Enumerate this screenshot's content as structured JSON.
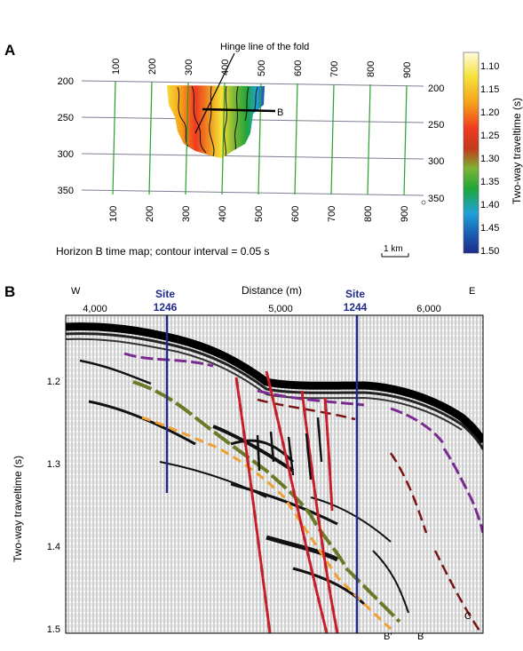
{
  "panelA": {
    "label": "A",
    "hinge_label": "Hinge line of the fold",
    "horizon_marker": "B",
    "caption": "Horizon B time map; contour interval = 0.05 s",
    "scale_bar": "1 km",
    "grid_top_labels": [
      "100",
      "200",
      "300",
      "400",
      "500",
      "600",
      "700",
      "800",
      "900"
    ],
    "grid_bottom_labels": [
      "100",
      "200",
      "300",
      "400",
      "500",
      "600",
      "700",
      "800",
      "900"
    ],
    "grid_left_labels": [
      "200",
      "250",
      "300",
      "350"
    ],
    "grid_right_labels": [
      "200",
      "250",
      "300",
      "350"
    ],
    "colorbar_title": "Two-way traveltime (s)",
    "colorbar_ticks": [
      "1.10",
      "1.15",
      "1.20",
      "1.25",
      "1.30",
      "1.35",
      "1.40",
      "1.45",
      "1.50"
    ],
    "colorbar_colors": [
      "#fff8c0",
      "#f5e23a",
      "#f7a21a",
      "#ef3a20",
      "#c23a1e",
      "#7bb532",
      "#1fa53c",
      "#1fa3d8",
      "#1a5fb4",
      "#1e2b8a"
    ]
  },
  "panelB": {
    "label": "B",
    "west": "W",
    "east": "E",
    "distance_title": "Distance (m)",
    "distance_ticks": [
      "4,000",
      "5,000",
      "6,000"
    ],
    "site1": {
      "name": "Site",
      "number": "1246"
    },
    "site2": {
      "name": "Site",
      "number": "1244"
    },
    "y_title": "Two-way traveltime (s)",
    "y_ticks": [
      "1.2",
      "1.3",
      "1.4",
      "1.5"
    ],
    "horizon_labels": [
      "B'",
      "B",
      "C"
    ]
  }
}
